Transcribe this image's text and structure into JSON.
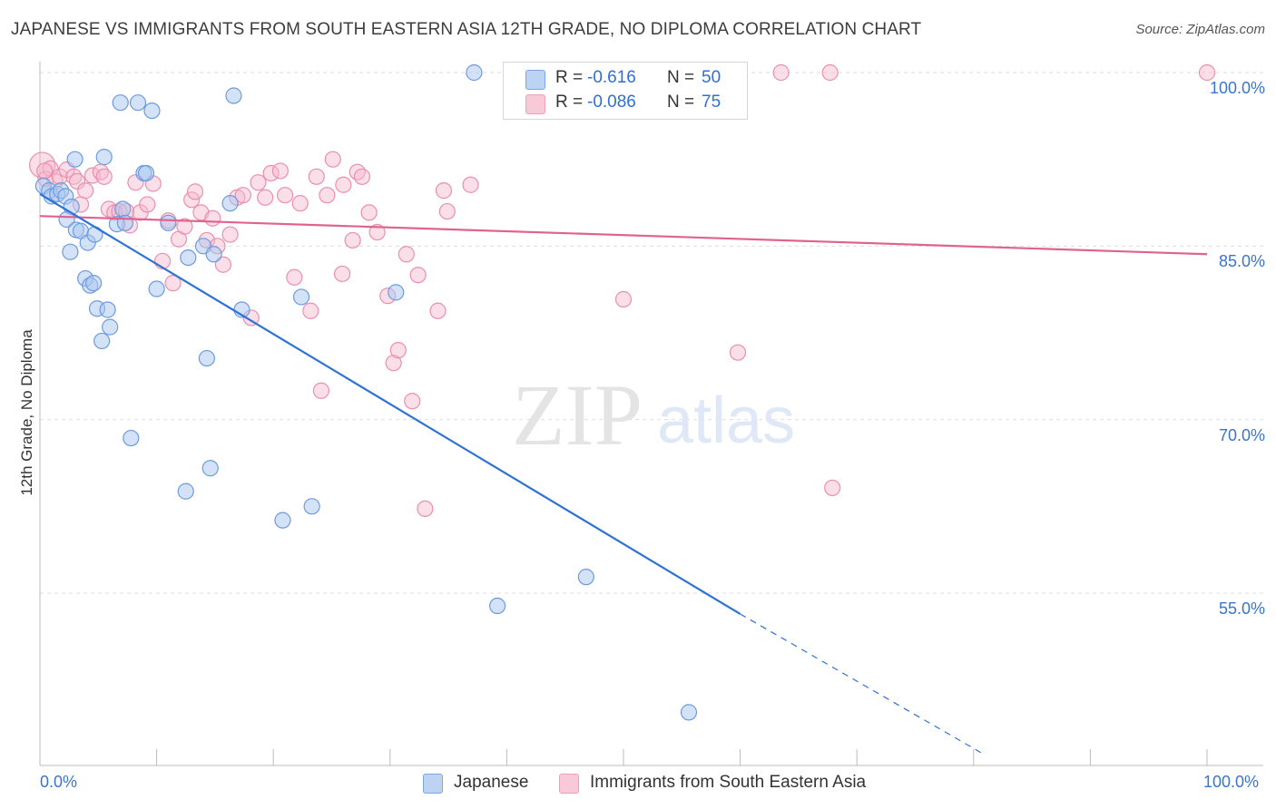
{
  "header": {
    "title": "JAPANESE VS IMMIGRANTS FROM SOUTH EASTERN ASIA 12TH GRADE, NO DIPLOMA CORRELATION CHART",
    "source_label": "Source: ZipAtlas.com"
  },
  "legend": {
    "rows": [
      {
        "r_label": "R =",
        "r_value": "-0.616",
        "n_label": "N =",
        "n_value": "50"
      },
      {
        "r_label": "R =",
        "r_value": "-0.086",
        "n_label": "N =",
        "n_value": "75"
      }
    ]
  },
  "bottom_legend": {
    "series": [
      {
        "label": "Japanese"
      },
      {
        "label": "Immigrants from South Eastern Asia"
      }
    ]
  },
  "watermark": {
    "zip": "ZIP",
    "atlas": "atlas"
  },
  "colors": {
    "blue_fill": "#a9c6f0",
    "blue_stroke": "#6d9be0",
    "blue_line": "#2f72d6",
    "pink_fill": "#f6b9cc",
    "pink_stroke": "#ea8fae",
    "pink_line": "#e0638f",
    "tick_text": "#3a74d1",
    "grid": "#dddddd"
  },
  "chart_data": {
    "type": "scatter",
    "title": "JAPANESE VS IMMIGRANTS FROM SOUTH EASTERN ASIA 12TH GRADE, NO DIPLOMA CORRELATION CHART",
    "xlabel": "",
    "ylabel": "12th Grade, No Diploma",
    "xlim": [
      0,
      100
    ],
    "ylim": [
      41,
      102
    ],
    "x_tick_labels": [
      "0.0%",
      "100.0%"
    ],
    "y_ticks": [
      100,
      85,
      70,
      55
    ],
    "y_tick_labels": [
      "100.0%",
      "85.0%",
      "70.0%",
      "55.0%"
    ],
    "grid": "horizontal dashed",
    "legend_position": "top-center",
    "series": [
      {
        "name": "Japanese",
        "r": -0.616,
        "n": 50,
        "trend": {
          "x0": 0,
          "y0": 89.5,
          "x1": 60,
          "y1": 53.2,
          "dashed_to_x": 81,
          "dashed_to_y": 41
        },
        "points": [
          [
            0.3,
            90.2
          ],
          [
            0.8,
            89.8
          ],
          [
            1.0,
            89.3
          ],
          [
            1.5,
            89.5
          ],
          [
            1.8,
            89.8
          ],
          [
            2.2,
            89.3
          ],
          [
            2.7,
            88.4
          ],
          [
            2.3,
            87.3
          ],
          [
            2.6,
            84.5
          ],
          [
            3.0,
            92.5
          ],
          [
            3.1,
            86.4
          ],
          [
            3.5,
            86.3
          ],
          [
            3.9,
            82.2
          ],
          [
            4.1,
            85.3
          ],
          [
            4.3,
            81.6
          ],
          [
            4.6,
            81.8
          ],
          [
            4.7,
            86.0
          ],
          [
            4.9,
            79.6
          ],
          [
            5.3,
            76.8
          ],
          [
            5.5,
            92.7
          ],
          [
            5.8,
            79.5
          ],
          [
            6.0,
            78.0
          ],
          [
            6.6,
            86.9
          ],
          [
            6.9,
            97.4
          ],
          [
            7.1,
            88.2
          ],
          [
            7.3,
            87.0
          ],
          [
            7.8,
            68.4
          ],
          [
            8.4,
            97.4
          ],
          [
            8.9,
            91.3
          ],
          [
            9.1,
            91.3
          ],
          [
            9.6,
            96.7
          ],
          [
            10.0,
            81.3
          ],
          [
            11.0,
            87.0
          ],
          [
            12.5,
            63.8
          ],
          [
            12.7,
            84.0
          ],
          [
            14.0,
            85.0
          ],
          [
            14.3,
            75.3
          ],
          [
            14.6,
            65.8
          ],
          [
            14.9,
            84.3
          ],
          [
            16.3,
            88.7
          ],
          [
            16.6,
            98.0
          ],
          [
            17.3,
            79.5
          ],
          [
            20.8,
            61.3
          ],
          [
            22.4,
            80.6
          ],
          [
            23.3,
            62.5
          ],
          [
            30.5,
            81.0
          ],
          [
            37.2,
            100.0
          ],
          [
            39.2,
            53.9
          ],
          [
            46.8,
            56.4
          ],
          [
            55.6,
            44.7
          ]
        ]
      },
      {
        "name": "Immigrants from South Eastern Asia",
        "r": -0.086,
        "n": 75,
        "trend": {
          "x0": 0,
          "y0": 87.6,
          "x1": 100,
          "y1": 84.3
        },
        "points": [
          [
            0.2,
            92.0
          ],
          [
            0.5,
            90.8
          ],
          [
            0.9,
            91.7
          ],
          [
            1.3,
            90.6
          ],
          [
            1.7,
            91.0
          ],
          [
            2.3,
            91.6
          ],
          [
            2.9,
            91.0
          ],
          [
            3.2,
            90.6
          ],
          [
            3.5,
            88.6
          ],
          [
            3.9,
            89.8
          ],
          [
            4.5,
            91.1
          ],
          [
            5.2,
            91.4
          ],
          [
            5.5,
            91.0
          ],
          [
            5.9,
            88.2
          ],
          [
            6.4,
            87.9
          ],
          [
            6.8,
            88.0
          ],
          [
            7.4,
            88.0
          ],
          [
            7.7,
            86.8
          ],
          [
            8.2,
            90.5
          ],
          [
            8.6,
            87.9
          ],
          [
            9.2,
            88.6
          ],
          [
            9.7,
            90.4
          ],
          [
            10.5,
            83.7
          ],
          [
            11.0,
            87.2
          ],
          [
            11.4,
            81.8
          ],
          [
            11.9,
            85.6
          ],
          [
            12.4,
            86.7
          ],
          [
            13.0,
            89.0
          ],
          [
            13.3,
            89.7
          ],
          [
            13.8,
            87.9
          ],
          [
            14.3,
            85.5
          ],
          [
            14.8,
            87.4
          ],
          [
            15.2,
            85.0
          ],
          [
            15.7,
            83.4
          ],
          [
            16.3,
            86.0
          ],
          [
            16.9,
            89.2
          ],
          [
            17.4,
            89.4
          ],
          [
            18.1,
            78.8
          ],
          [
            18.7,
            90.5
          ],
          [
            19.3,
            89.2
          ],
          [
            19.8,
            91.3
          ],
          [
            20.6,
            91.5
          ],
          [
            21.0,
            89.4
          ],
          [
            21.8,
            82.3
          ],
          [
            22.3,
            88.7
          ],
          [
            23.2,
            79.4
          ],
          [
            23.7,
            91.0
          ],
          [
            24.1,
            72.5
          ],
          [
            24.6,
            89.4
          ],
          [
            25.1,
            92.5
          ],
          [
            25.9,
            82.6
          ],
          [
            26.0,
            90.3
          ],
          [
            26.8,
            85.5
          ],
          [
            27.2,
            91.4
          ],
          [
            27.6,
            91.0
          ],
          [
            28.2,
            87.9
          ],
          [
            28.9,
            86.2
          ],
          [
            29.8,
            80.7
          ],
          [
            30.3,
            74.9
          ],
          [
            30.7,
            76.0
          ],
          [
            31.4,
            84.3
          ],
          [
            31.9,
            71.6
          ],
          [
            32.4,
            82.5
          ],
          [
            33.0,
            62.3
          ],
          [
            34.1,
            79.4
          ],
          [
            34.6,
            89.8
          ],
          [
            34.9,
            88.0
          ],
          [
            36.9,
            90.3
          ],
          [
            50.0,
            80.4
          ],
          [
            59.8,
            75.8
          ],
          [
            63.5,
            100.0
          ],
          [
            67.9,
            64.1
          ],
          [
            67.7,
            100.0
          ],
          [
            100.0,
            100.0
          ],
          [
            0.4,
            91.5
          ]
        ]
      }
    ]
  }
}
